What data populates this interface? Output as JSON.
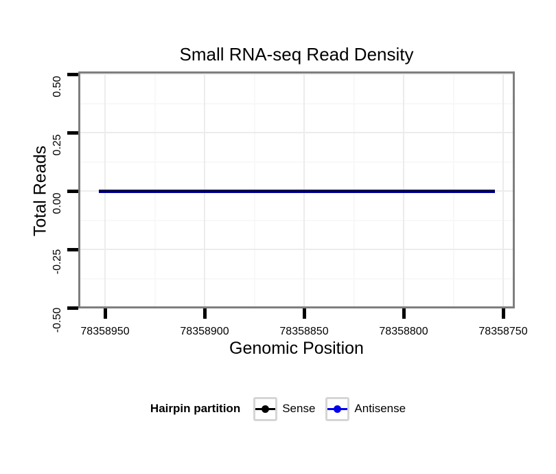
{
  "chart_data": {
    "type": "line",
    "title": "Small RNA-seq Read Density",
    "xlabel": "Genomic Position",
    "ylabel": "Total Reads",
    "x_reversed": true,
    "xlim": [
      78358962,
      78358745
    ],
    "ylim": [
      -0.5,
      0.5
    ],
    "x_ticks": [
      78358950,
      78358900,
      78358850,
      78358800,
      78358750
    ],
    "x_tick_labels": [
      "78358950",
      "78358900",
      "78358850",
      "78358800",
      "78358750"
    ],
    "y_ticks": [
      0.5,
      0.25,
      0,
      -0.25,
      -0.5
    ],
    "y_tick_labels": [
      "0.50",
      "0.25",
      "0.00",
      "-0.25",
      "-0.50"
    ],
    "grid": {
      "major": true,
      "minor": true
    },
    "panel_border_color": "#7E7E7E",
    "grid_major_color": "#ECECEC",
    "grid_minor_color": "#F8F8F8",
    "legend": {
      "title": "Hairpin partition",
      "position": "bottom",
      "entries": [
        {
          "label": "Sense",
          "color": "#000000"
        },
        {
          "label": "Antisense",
          "color": "#0000EE"
        }
      ]
    },
    "series": [
      {
        "name": "Sense",
        "color": "#000000",
        "x": [
          78358953,
          78358754
        ],
        "y": [
          0,
          0
        ]
      },
      {
        "name": "Antisense",
        "color": "#0000EE",
        "x": [
          78358953,
          78358754
        ],
        "y": [
          0,
          0
        ]
      }
    ]
  }
}
